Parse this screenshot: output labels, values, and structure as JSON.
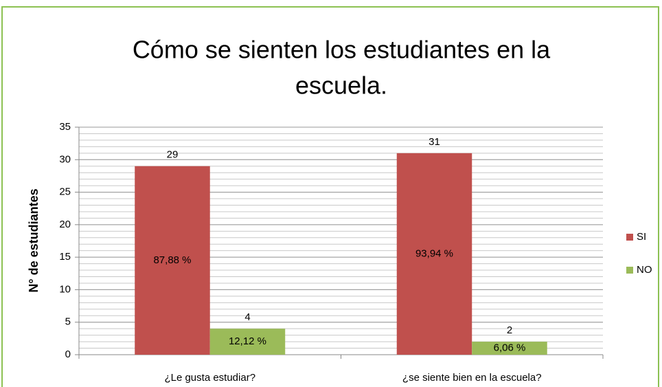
{
  "chart_data": {
    "type": "bar",
    "title": "Cómo se sienten los estudiantes en la",
    "title_line2": "escuela.",
    "ylabel": "N° de estudiantes",
    "categories": [
      "¿Le gusta estudiar?",
      "¿se siente bien en la escuela?"
    ],
    "series": [
      {
        "name": "SI",
        "color": "#c0504d",
        "values": [
          29,
          31
        ],
        "percent_labels": [
          "87,88 %",
          "93,94 %"
        ]
      },
      {
        "name": "NO",
        "color": "#9bbb59",
        "values": [
          4,
          2
        ],
        "percent_labels": [
          "12,12 %",
          "6,06 %"
        ]
      }
    ],
    "ylim": [
      0,
      35
    ],
    "yticks": [
      0,
      5,
      10,
      15,
      20,
      25,
      30,
      35
    ],
    "grid": true,
    "minor_grid_step": 1,
    "legend": "right"
  }
}
